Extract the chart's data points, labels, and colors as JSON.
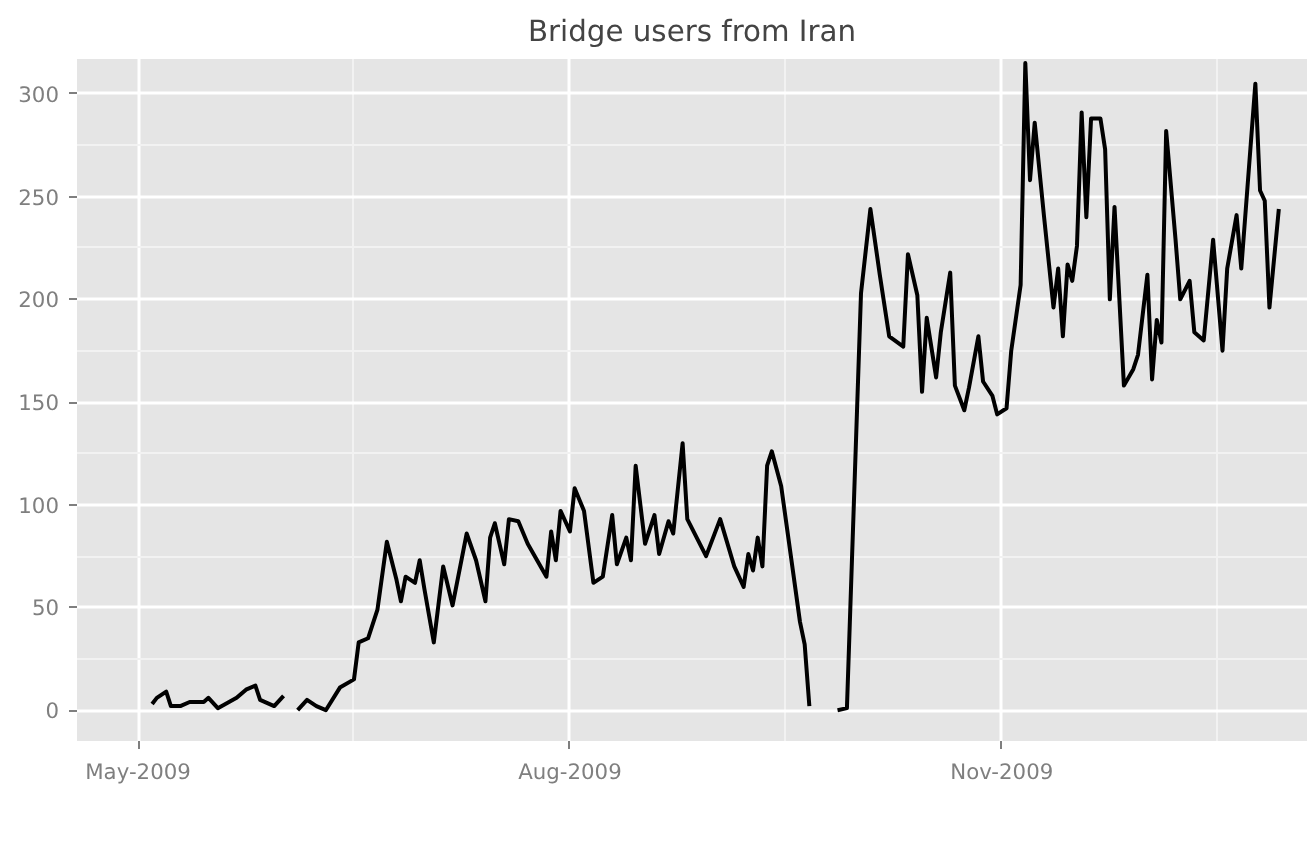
{
  "chart_data": {
    "type": "line",
    "title": "Bridge users from Iran",
    "x": [
      "2009-05-04",
      "2009-05-05",
      "2009-05-07",
      "2009-05-08",
      "2009-05-10",
      "2009-05-12",
      "2009-05-15",
      "2009-05-16",
      "2009-05-18",
      "2009-05-22",
      "2009-05-24",
      "2009-05-26",
      "2009-05-27",
      "2009-05-30",
      "2009-06-01",
      "2009-06-02",
      "2009-06-04",
      "2009-06-06",
      "2009-06-08",
      "2009-06-10",
      "2009-06-13",
      "2009-06-16",
      "2009-06-17",
      "2009-06-19",
      "2009-06-21",
      "2009-06-23",
      "2009-06-25",
      "2009-06-26",
      "2009-06-27",
      "2009-06-29",
      "2009-06-30",
      "2009-07-01",
      "2009-07-03",
      "2009-07-05",
      "2009-07-07",
      "2009-07-10",
      "2009-07-12",
      "2009-07-14",
      "2009-07-15",
      "2009-07-16",
      "2009-07-18",
      "2009-07-19",
      "2009-07-21",
      "2009-07-23",
      "2009-07-27",
      "2009-07-28",
      "2009-07-29",
      "2009-07-30",
      "2009-08-01",
      "2009-08-02",
      "2009-08-04",
      "2009-08-06",
      "2009-08-08",
      "2009-08-10",
      "2009-08-11",
      "2009-08-13",
      "2009-08-14",
      "2009-08-15",
      "2009-08-17",
      "2009-08-19",
      "2009-08-20",
      "2009-08-22",
      "2009-08-23",
      "2009-08-25",
      "2009-08-26",
      "2009-08-28",
      "2009-08-30",
      "2009-09-02",
      "2009-09-05",
      "2009-09-07",
      "2009-09-08",
      "2009-09-09",
      "2009-09-10",
      "2009-09-11",
      "2009-09-12",
      "2009-09-13",
      "2009-09-15",
      "2009-09-17",
      "2009-09-19",
      "2009-09-20",
      "2009-09-21",
      "2009-09-24",
      "2009-09-27",
      "2009-09-29",
      "2009-10-02",
      "2009-10-04",
      "2009-10-06",
      "2009-10-08",
      "2009-10-11",
      "2009-10-12",
      "2009-10-14",
      "2009-10-15",
      "2009-10-16",
      "2009-10-18",
      "2009-10-19",
      "2009-10-21",
      "2009-10-22",
      "2009-10-24",
      "2009-10-25",
      "2009-10-27",
      "2009-10-28",
      "2009-10-30",
      "2009-10-31",
      "2009-11-02",
      "2009-11-03",
      "2009-11-05",
      "2009-11-06",
      "2009-11-07",
      "2009-11-08",
      "2009-11-10",
      "2009-11-12",
      "2009-11-13",
      "2009-11-14",
      "2009-11-15",
      "2009-11-16",
      "2009-11-17",
      "2009-11-18",
      "2009-11-19",
      "2009-11-20",
      "2009-11-22",
      "2009-11-23",
      "2009-11-24",
      "2009-11-25",
      "2009-11-27",
      "2009-11-29",
      "2009-11-30",
      "2009-12-02",
      "2009-12-03",
      "2009-12-04",
      "2009-12-05",
      "2009-12-06",
      "2009-12-08",
      "2009-12-09",
      "2009-12-11",
      "2009-12-12",
      "2009-12-14",
      "2009-12-16",
      "2009-12-18",
      "2009-12-19",
      "2009-12-21",
      "2009-12-22",
      "2009-12-25",
      "2009-12-26",
      "2009-12-27",
      "2009-12-28",
      "2009-12-30"
    ],
    "series": [
      {
        "color": "#000000",
        "values": [
          3,
          6,
          9,
          2,
          2,
          4,
          4,
          6,
          1,
          6,
          10,
          12,
          5,
          2,
          7,
          null,
          0,
          5,
          2,
          0,
          11,
          15,
          33,
          35,
          49,
          82,
          64,
          53,
          65,
          62,
          73,
          59,
          33,
          70,
          51,
          86,
          73,
          53,
          84,
          91,
          71,
          93,
          92,
          81,
          65,
          87,
          73,
          97,
          87,
          108,
          97,
          62,
          65,
          95,
          71,
          84,
          73,
          119,
          81,
          95,
          76,
          92,
          86,
          130,
          93,
          84,
          75,
          93,
          70,
          60,
          76,
          68,
          84,
          70,
          119,
          126,
          109,
          76,
          43,
          32,
          2,
          null,
          0,
          1,
          203,
          244,
          212,
          182,
          177,
          222,
          202,
          155,
          191,
          162,
          184,
          213,
          158,
          146,
          157,
          182,
          160,
          153,
          144,
          147,
          175,
          207,
          315,
          258,
          286,
          240,
          196,
          215,
          182,
          217,
          209,
          226,
          291,
          240,
          288,
          288,
          273,
          200,
          245,
          158,
          166,
          173,
          212,
          161,
          190,
          179,
          282,
          229,
          200,
          209,
          184,
          180,
          229,
          175,
          215,
          241,
          215,
          305,
          253,
          248,
          196,
          244
        ]
      }
    ],
    "xlim": [
      "2009-04-18",
      "2010-01-05"
    ],
    "xticks": [
      {
        "value": "2009-05-01",
        "label": "May-2009"
      },
      {
        "value": "2009-08-01",
        "label": "Aug-2009"
      },
      {
        "value": "2009-11-01",
        "label": "Nov-2009"
      }
    ],
    "ylim": [
      -15,
      317
    ],
    "yticks": [
      0,
      50,
      100,
      150,
      200,
      250,
      300
    ],
    "grid": true,
    "line_style": "solid"
  }
}
